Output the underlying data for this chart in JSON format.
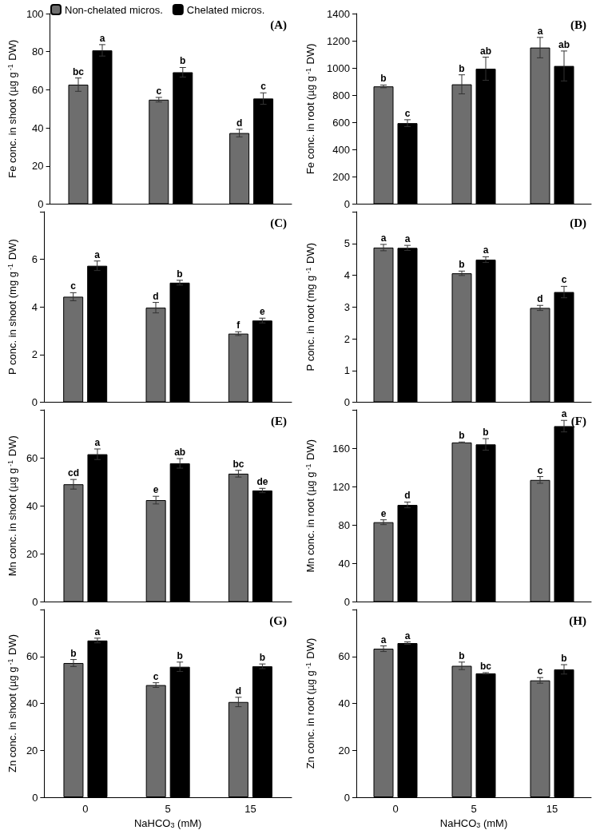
{
  "chart_data": [
    {
      "type": "bar",
      "ylabel": "Fe conc. in shoot (µg g$^{-1}$ DW)",
      "categories": [
        "0",
        "5",
        "15"
      ],
      "ylim": [
        0,
        100
      ],
      "yticks": [
        0,
        20,
        40,
        60,
        80,
        100
      ],
      "tick_labels": "y",
      "legend": "top",
      "annotations": [
        "(A)"
      ],
      "series": [
        {
          "name": "Non-chelated micros.",
          "color": "#6e6e6e",
          "values": [
            62.7,
            54.8,
            37.3
          ],
          "errors": [
            3.5,
            1.2,
            2
          ],
          "value_labels": [
            "bc",
            "c",
            "d"
          ]
        },
        {
          "name": "Chelated micros.",
          "color": "#000000",
          "values": [
            80.7,
            69.2,
            55.4
          ],
          "errors": [
            3,
            2.5,
            3
          ],
          "value_labels": [
            "a",
            "b",
            "c"
          ]
        }
      ]
    },
    {
      "type": "bar",
      "ylabel": "Fe conc. in root (µg g$^{-1}$ DW)",
      "categories": [
        "0",
        "5",
        "15"
      ],
      "ylim": [
        0,
        1400
      ],
      "yticks": [
        0,
        200,
        400,
        600,
        800,
        1000,
        1200,
        1400
      ],
      "tick_labels": "y",
      "annotations": [
        "(B)"
      ],
      "series": [
        {
          "color": "#6e6e6e",
          "values": [
            865,
            880,
            1150
          ],
          "errors": [
            10,
            70,
            75
          ],
          "value_labels": [
            "b",
            "b",
            "a"
          ]
        },
        {
          "color": "#000000",
          "values": [
            595,
            995,
            1015
          ],
          "errors": [
            25,
            85,
            110
          ],
          "value_labels": [
            "c",
            "ab",
            "ab"
          ]
        }
      ]
    },
    {
      "type": "bar",
      "ylabel": "P conc. in shoot (mg g$^{-1}$ DW)",
      "categories": [
        "0",
        "5",
        "15"
      ],
      "ylim": [
        0,
        8
      ],
      "yticks": [
        0,
        2,
        4,
        6,
        {
          "value": 8,
          "label": null
        }
      ],
      "tick_labels": "y",
      "annotations": [
        "(C)"
      ],
      "series": [
        {
          "color": "#6e6e6e",
          "values": [
            4.43,
            3.97,
            2.88
          ],
          "errors": [
            0.17,
            0.22,
            0.08
          ],
          "value_labels": [
            "c",
            "d",
            "f"
          ]
        },
        {
          "color": "#000000",
          "values": [
            5.73,
            5.02,
            3.43
          ],
          "errors": [
            0.2,
            0.1,
            0.1
          ],
          "value_labels": [
            "a",
            "b",
            "e"
          ]
        }
      ]
    },
    {
      "type": "bar",
      "ylabel": "P conc. in root (mg g$^{-1}$ DW)",
      "categories": [
        "0",
        "5",
        "15"
      ],
      "ylim": [
        0,
        6
      ],
      "yticks": [
        0,
        1,
        2,
        3,
        4,
        5,
        {
          "value": 6,
          "label": null
        }
      ],
      "tick_labels": "y",
      "annotations": [
        "(D)"
      ],
      "series": [
        {
          "color": "#6e6e6e",
          "values": [
            4.87,
            4.06,
            2.97
          ],
          "errors": [
            0.1,
            0.07,
            0.08
          ],
          "value_labels": [
            "a",
            "b",
            "d"
          ]
        },
        {
          "color": "#000000",
          "values": [
            4.86,
            4.49,
            3.47
          ],
          "errors": [
            0.08,
            0.09,
            0.18
          ],
          "value_labels": [
            "a",
            "a",
            "c"
          ]
        }
      ]
    },
    {
      "type": "bar",
      "ylabel": "Mn conc. in shoot (µg g$^{-1}$ DW)",
      "categories": [
        "0",
        "5",
        "15"
      ],
      "ylim": [
        0,
        80
      ],
      "yticks": [
        0,
        20,
        40,
        60,
        {
          "value": 80,
          "label": null
        }
      ],
      "tick_labels": "y",
      "annotations": [
        "(E)"
      ],
      "series": [
        {
          "color": "#6e6e6e",
          "values": [
            49,
            42.4,
            53.4
          ],
          "errors": [
            2,
            1.6,
            1.4
          ],
          "value_labels": [
            "cd",
            "e",
            "bc"
          ]
        },
        {
          "color": "#000000",
          "values": [
            61.5,
            57.7,
            46.4
          ],
          "errors": [
            2.2,
            2,
            0.9
          ],
          "value_labels": [
            "a",
            "ab",
            "de"
          ]
        }
      ]
    },
    {
      "type": "bar",
      "ylabel": "Mn conc. in root (µg g$^{-1}$ DW)",
      "categories": [
        "0",
        "5",
        "15"
      ],
      "ylim": [
        0,
        200
      ],
      "yticks": [
        0,
        40,
        80,
        120,
        160,
        {
          "value": 200,
          "label": null
        }
      ],
      "tick_labels": "y",
      "annotations": [
        "(F)"
      ],
      "series": [
        {
          "color": "#6e6e6e",
          "values": [
            83,
            166,
            127
          ],
          "errors": [
            2.5,
            0.5,
            3.5
          ],
          "value_labels": [
            "e",
            "b",
            "c"
          ]
        },
        {
          "color": "#000000",
          "values": [
            101,
            164,
            183
          ],
          "errors": [
            3,
            6,
            6
          ],
          "value_labels": [
            "d",
            "b",
            "a"
          ]
        }
      ]
    },
    {
      "type": "bar",
      "ylabel": "Zn conc. in shoot (µg g$^{-1}$ DW)",
      "xlabel": "NaHCO$_{3}$ (mM)",
      "categories": [
        "0",
        "5",
        "15"
      ],
      "ylim": [
        0,
        80
      ],
      "yticks": [
        0,
        20,
        40,
        60,
        {
          "value": 80,
          "label": null
        }
      ],
      "annotations": [
        "(G)"
      ],
      "series": [
        {
          "color": "#6e6e6e",
          "values": [
            57.2,
            47.8,
            40.6
          ],
          "errors": [
            1.5,
            1,
            2
          ],
          "value_labels": [
            "b",
            "c",
            "d"
          ]
        },
        {
          "color": "#000000",
          "values": [
            66.8,
            55.6,
            55.8
          ],
          "errors": [
            1,
            2,
            1
          ],
          "value_labels": [
            "a",
            "b",
            "b"
          ]
        }
      ]
    },
    {
      "type": "bar",
      "ylabel": "Zn conc. in root (µg g$^{-1}$ DW)",
      "xlabel": "NaHCO$_{3}$ (mM)",
      "categories": [
        "0",
        "5",
        "15"
      ],
      "ylim": [
        0,
        80
      ],
      "yticks": [
        0,
        20,
        40,
        60,
        {
          "value": 80,
          "label": null
        }
      ],
      "annotations": [
        "(H)"
      ],
      "series": [
        {
          "color": "#6e6e6e",
          "values": [
            63.3,
            56,
            49.8
          ],
          "errors": [
            1.2,
            1.6,
            1.2
          ],
          "value_labels": [
            "a",
            "b",
            "c"
          ]
        },
        {
          "color": "#000000",
          "values": [
            65.7,
            52.8,
            54.5
          ],
          "errors": [
            0.5,
            0.3,
            2
          ],
          "value_labels": [
            "a",
            "bc",
            "b"
          ]
        }
      ]
    }
  ]
}
